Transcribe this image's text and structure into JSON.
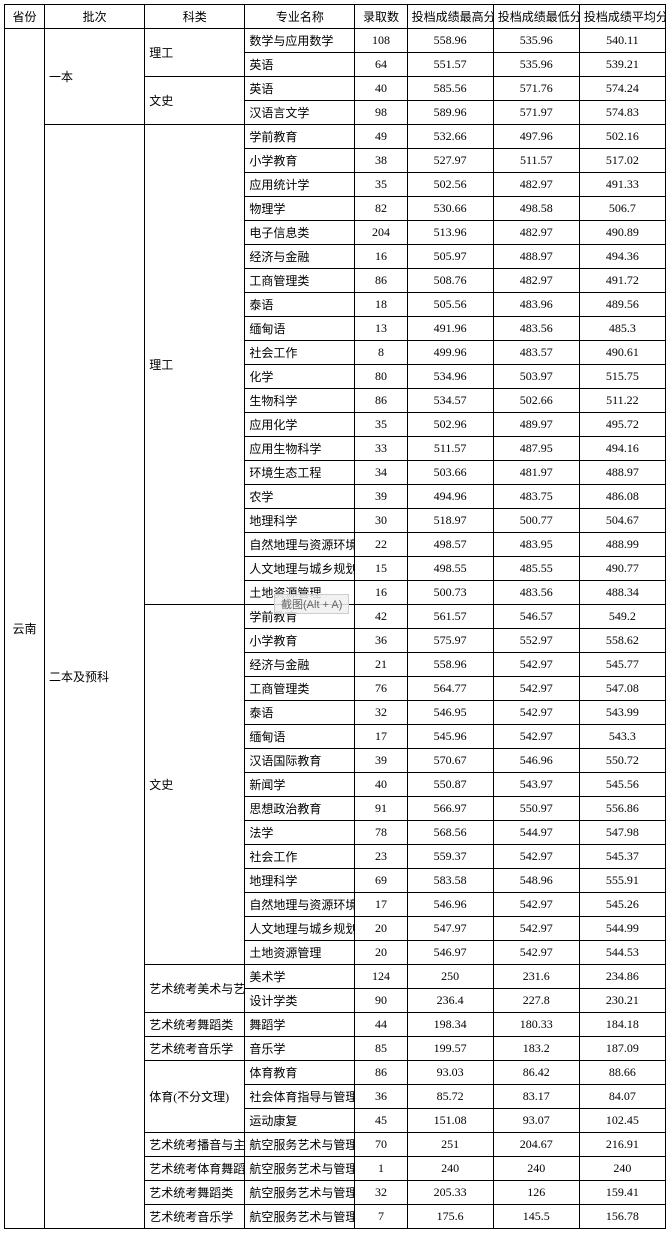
{
  "columns": {
    "province": "省份",
    "batch": "批次",
    "category": "科类",
    "major": "专业名称",
    "enroll": "录取数",
    "max": "投档成绩最高分",
    "min": "投档成绩最低分",
    "avg": "投档成绩平均分"
  },
  "province": "云南",
  "batch1": "一本",
  "batch2": "二本及预科",
  "overlay": "截图(Alt + A)",
  "col_widths": {
    "province": 40,
    "batch": 100,
    "category": 100,
    "major": 110,
    "enroll": 52,
    "max": 86,
    "min": 86,
    "avg": 86
  },
  "groups": [
    {
      "batch": 1,
      "category": "理工",
      "rows": [
        {
          "major": "数学与应用数学",
          "enroll": 108,
          "max": "558.96",
          "min": "535.96",
          "avg": "540.11"
        },
        {
          "major": "英语",
          "enroll": 64,
          "max": "551.57",
          "min": "535.96",
          "avg": "539.21"
        }
      ]
    },
    {
      "batch": 1,
      "category": "文史",
      "rows": [
        {
          "major": "英语",
          "enroll": 40,
          "max": "585.56",
          "min": "571.76",
          "avg": "574.24"
        },
        {
          "major": "汉语言文学",
          "enroll": 98,
          "max": "589.96",
          "min": "571.97",
          "avg": "574.83"
        }
      ]
    },
    {
      "batch": 2,
      "category": "理工",
      "rows": [
        {
          "major": "学前教育",
          "enroll": 49,
          "max": "532.66",
          "min": "497.96",
          "avg": "502.16"
        },
        {
          "major": "小学教育",
          "enroll": 38,
          "max": "527.97",
          "min": "511.57",
          "avg": "517.02"
        },
        {
          "major": "应用统计学",
          "enroll": 35,
          "max": "502.56",
          "min": "482.97",
          "avg": "491.33"
        },
        {
          "major": "物理学",
          "enroll": 82,
          "max": "530.66",
          "min": "498.58",
          "avg": "506.7"
        },
        {
          "major": "电子信息类",
          "enroll": 204,
          "max": "513.96",
          "min": "482.97",
          "avg": "490.89"
        },
        {
          "major": "经济与金融",
          "enroll": 16,
          "max": "505.97",
          "min": "488.97",
          "avg": "494.36"
        },
        {
          "major": "工商管理类",
          "enroll": 86,
          "max": "508.76",
          "min": "482.97",
          "avg": "491.72"
        },
        {
          "major": "泰语",
          "enroll": 18,
          "max": "505.56",
          "min": "483.96",
          "avg": "489.56"
        },
        {
          "major": "缅甸语",
          "enroll": 13,
          "max": "491.96",
          "min": "483.56",
          "avg": "485.3"
        },
        {
          "major": "社会工作",
          "enroll": 8,
          "max": "499.96",
          "min": "483.57",
          "avg": "490.61"
        },
        {
          "major": "化学",
          "enroll": 80,
          "max": "534.96",
          "min": "503.97",
          "avg": "515.75"
        },
        {
          "major": "生物科学",
          "enroll": 86,
          "max": "534.57",
          "min": "502.66",
          "avg": "511.22"
        },
        {
          "major": "应用化学",
          "enroll": 35,
          "max": "502.96",
          "min": "489.97",
          "avg": "495.72"
        },
        {
          "major": "应用生物科学",
          "enroll": 33,
          "max": "511.57",
          "min": "487.95",
          "avg": "494.16"
        },
        {
          "major": "环境生态工程",
          "enroll": 34,
          "max": "503.66",
          "min": "481.97",
          "avg": "488.97"
        },
        {
          "major": "农学",
          "enroll": 39,
          "max": "494.96",
          "min": "483.75",
          "avg": "486.08"
        },
        {
          "major": "地理科学",
          "enroll": 30,
          "max": "518.97",
          "min": "500.77",
          "avg": "504.67"
        },
        {
          "major": "自然地理与资源环境",
          "enroll": 22,
          "max": "498.57",
          "min": "483.95",
          "avg": "488.99"
        },
        {
          "major": "人文地理与城乡规划",
          "enroll": 15,
          "max": "498.55",
          "min": "485.55",
          "avg": "490.77"
        },
        {
          "major": "土地资源管理",
          "enroll": 16,
          "max": "500.73",
          "min": "483.56",
          "avg": "488.34"
        }
      ]
    },
    {
      "batch": 2,
      "category": "文史",
      "rows": [
        {
          "major": "学前教育",
          "enroll": 42,
          "max": "561.57",
          "min": "546.57",
          "avg": "549.2"
        },
        {
          "major": "小学教育",
          "enroll": 36,
          "max": "575.97",
          "min": "552.97",
          "avg": "558.62"
        },
        {
          "major": "经济与金融",
          "enroll": 21,
          "max": "558.96",
          "min": "542.97",
          "avg": "545.77"
        },
        {
          "major": "工商管理类",
          "enroll": 76,
          "max": "564.77",
          "min": "542.97",
          "avg": "547.08"
        },
        {
          "major": "泰语",
          "enroll": 32,
          "max": "546.95",
          "min": "542.97",
          "avg": "543.99"
        },
        {
          "major": "缅甸语",
          "enroll": 17,
          "max": "545.96",
          "min": "542.97",
          "avg": "543.3"
        },
        {
          "major": "汉语国际教育",
          "enroll": 39,
          "max": "570.67",
          "min": "546.96",
          "avg": "550.72"
        },
        {
          "major": "新闻学",
          "enroll": 40,
          "max": "550.87",
          "min": "543.97",
          "avg": "545.56"
        },
        {
          "major": "思想政治教育",
          "enroll": 91,
          "max": "566.97",
          "min": "550.97",
          "avg": "556.86"
        },
        {
          "major": "法学",
          "enroll": 78,
          "max": "568.56",
          "min": "544.97",
          "avg": "547.98"
        },
        {
          "major": "社会工作",
          "enroll": 23,
          "max": "559.37",
          "min": "542.97",
          "avg": "545.37"
        },
        {
          "major": "地理科学",
          "enroll": 69,
          "max": "583.58",
          "min": "548.96",
          "avg": "555.91"
        },
        {
          "major": "自然地理与资源环境",
          "enroll": 17,
          "max": "546.96",
          "min": "542.97",
          "avg": "545.26"
        },
        {
          "major": "人文地理与城乡规划",
          "enroll": 20,
          "max": "547.97",
          "min": "542.97",
          "avg": "544.99"
        },
        {
          "major": "土地资源管理",
          "enroll": 20,
          "max": "546.97",
          "min": "542.97",
          "avg": "544.53"
        }
      ]
    },
    {
      "batch": 2,
      "category": "艺术统考美术与艺术设计",
      "rows": [
        {
          "major": "美术学",
          "enroll": 124,
          "max": "250",
          "min": "231.6",
          "avg": "234.86"
        },
        {
          "major": "设计学类",
          "enroll": 90,
          "max": "236.4",
          "min": "227.8",
          "avg": "230.21"
        }
      ]
    },
    {
      "batch": 2,
      "category": "艺术统考舞蹈类",
      "rows": [
        {
          "major": "舞蹈学",
          "enroll": 44,
          "max": "198.34",
          "min": "180.33",
          "avg": "184.18"
        }
      ]
    },
    {
      "batch": 2,
      "category": "艺术统考音乐学",
      "rows": [
        {
          "major": "音乐学",
          "enroll": 85,
          "max": "199.57",
          "min": "183.2",
          "avg": "187.09"
        }
      ]
    },
    {
      "batch": 2,
      "category": "体育(不分文理)",
      "rows": [
        {
          "major": "体育教育",
          "enroll": 86,
          "max": "93.03",
          "min": "86.42",
          "avg": "88.66"
        },
        {
          "major": "社会体育指导与管理",
          "enroll": 36,
          "max": "85.72",
          "min": "83.17",
          "avg": "84.07"
        },
        {
          "major": "运动康复",
          "enroll": 45,
          "max": "151.08",
          "min": "93.07",
          "avg": "102.45"
        }
      ]
    },
    {
      "batch": 2,
      "category": "艺术统考播音与主持",
      "rows": [
        {
          "major": "航空服务艺术与管理",
          "enroll": 70,
          "max": "251",
          "min": "204.67",
          "avg": "216.91"
        }
      ]
    },
    {
      "batch": 2,
      "category": "艺术统考体育舞蹈",
      "rows": [
        {
          "major": "航空服务艺术与管理",
          "enroll": 1,
          "max": "240",
          "min": "240",
          "avg": "240"
        }
      ]
    },
    {
      "batch": 2,
      "category": "艺术统考舞蹈类",
      "rows": [
        {
          "major": "航空服务艺术与管理",
          "enroll": 32,
          "max": "205.33",
          "min": "126",
          "avg": "159.41"
        }
      ]
    },
    {
      "batch": 2,
      "category": "艺术统考音乐学",
      "rows": [
        {
          "major": "航空服务艺术与管理",
          "enroll": 7,
          "max": "175.6",
          "min": "145.5",
          "avg": "156.78"
        }
      ]
    }
  ]
}
